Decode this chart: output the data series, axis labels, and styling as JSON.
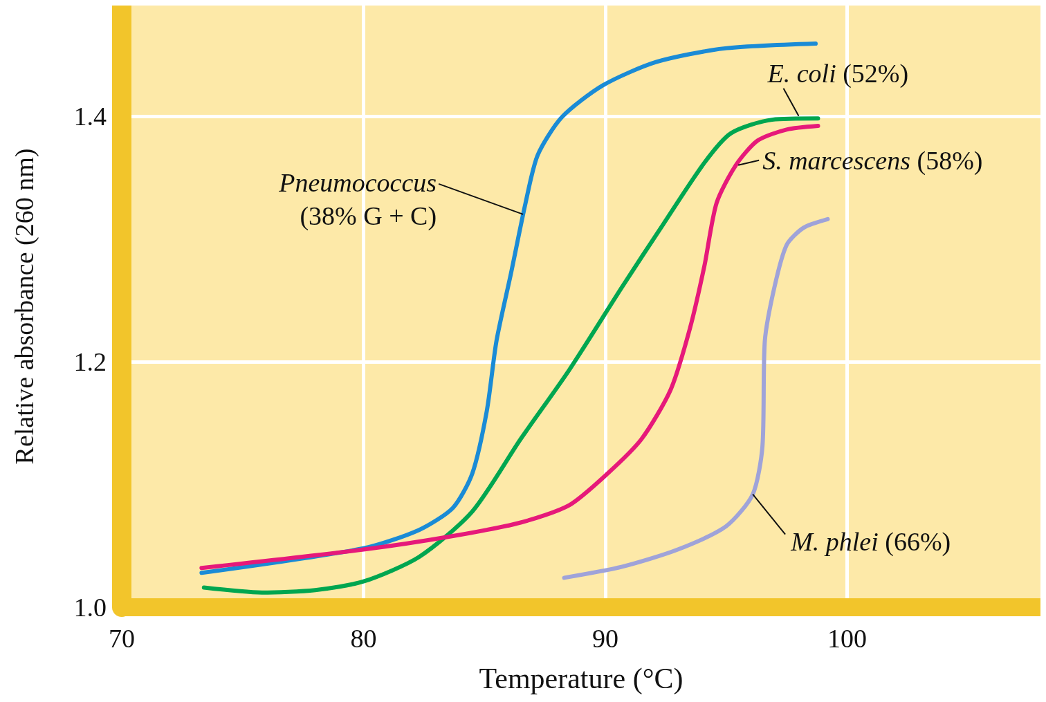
{
  "chart_data": {
    "type": "line",
    "xlabel": "Temperature (°C)",
    "ylabel": "Relative absorbance (260 nm)",
    "xlim": [
      70,
      108
    ],
    "xticks": [
      70,
      80,
      90,
      100
    ],
    "ylim": [
      1.0,
      1.49
    ],
    "yticks": [
      {
        "value": 1.0,
        "label": "1.0"
      },
      {
        "value": 1.2,
        "label": "1.2"
      },
      {
        "value": 1.4,
        "label": "1.4"
      }
    ],
    "grid": true,
    "marker": "none",
    "series": [
      {
        "color": "#1a8bd6",
        "x": [
          73.3,
          80,
          82.3,
          83.7,
          84.5,
          85.1,
          85.5,
          86.1,
          86.7,
          87.2,
          88.2,
          89.9,
          92.1,
          94.9,
          98.7
        ],
        "values": [
          1.028,
          1.048,
          1.063,
          1.081,
          1.109,
          1.16,
          1.217,
          1.272,
          1.329,
          1.368,
          1.399,
          1.425,
          1.444,
          1.455,
          1.459
        ]
      },
      {
        "color": "#00a650",
        "x": [
          73.4,
          75.8,
          78.0,
          80,
          82.3,
          84.5,
          86.5,
          88.5,
          90.7,
          92.4,
          94.1,
          95.2,
          96.9,
          98.8
        ],
        "values": [
          1.016,
          1.012,
          1.014,
          1.021,
          1.041,
          1.078,
          1.137,
          1.193,
          1.261,
          1.312,
          1.362,
          1.386,
          1.397,
          1.398
        ]
      },
      {
        "color": "#e6197a",
        "x": [
          73.3,
          80,
          83.7,
          86.5,
          88.5,
          90.1,
          91.5,
          92.7,
          93.5,
          94.1,
          94.6,
          95.4,
          96.3,
          97.5,
          98.8
        ],
        "values": [
          1.032,
          1.047,
          1.058,
          1.069,
          1.083,
          1.109,
          1.137,
          1.177,
          1.227,
          1.278,
          1.329,
          1.36,
          1.38,
          1.389,
          1.392
        ]
      },
      {
        "color": "#9fa3d9",
        "x": [
          88.3,
          90.7,
          93.0,
          95.0,
          96.1,
          96.5,
          96.6,
          97.0,
          97.5,
          98.2,
          99.2
        ],
        "values": [
          1.024,
          1.033,
          1.047,
          1.066,
          1.092,
          1.131,
          1.217,
          1.261,
          1.295,
          1.309,
          1.316
        ]
      }
    ],
    "annotations": [
      {
        "text": "Pneumococcus\n(38% G + C)",
        "x": 86.6,
        "y": 1.32
      },
      {
        "text": "E. coli (52%)",
        "x": 98.0,
        "y": 1.4
      },
      {
        "text": "S. marcescens (58%)",
        "x": 95.5,
        "y": 1.36
      },
      {
        "text": "M. phlei (66%)",
        "x": 96.1,
        "y": 1.092
      }
    ]
  }
}
